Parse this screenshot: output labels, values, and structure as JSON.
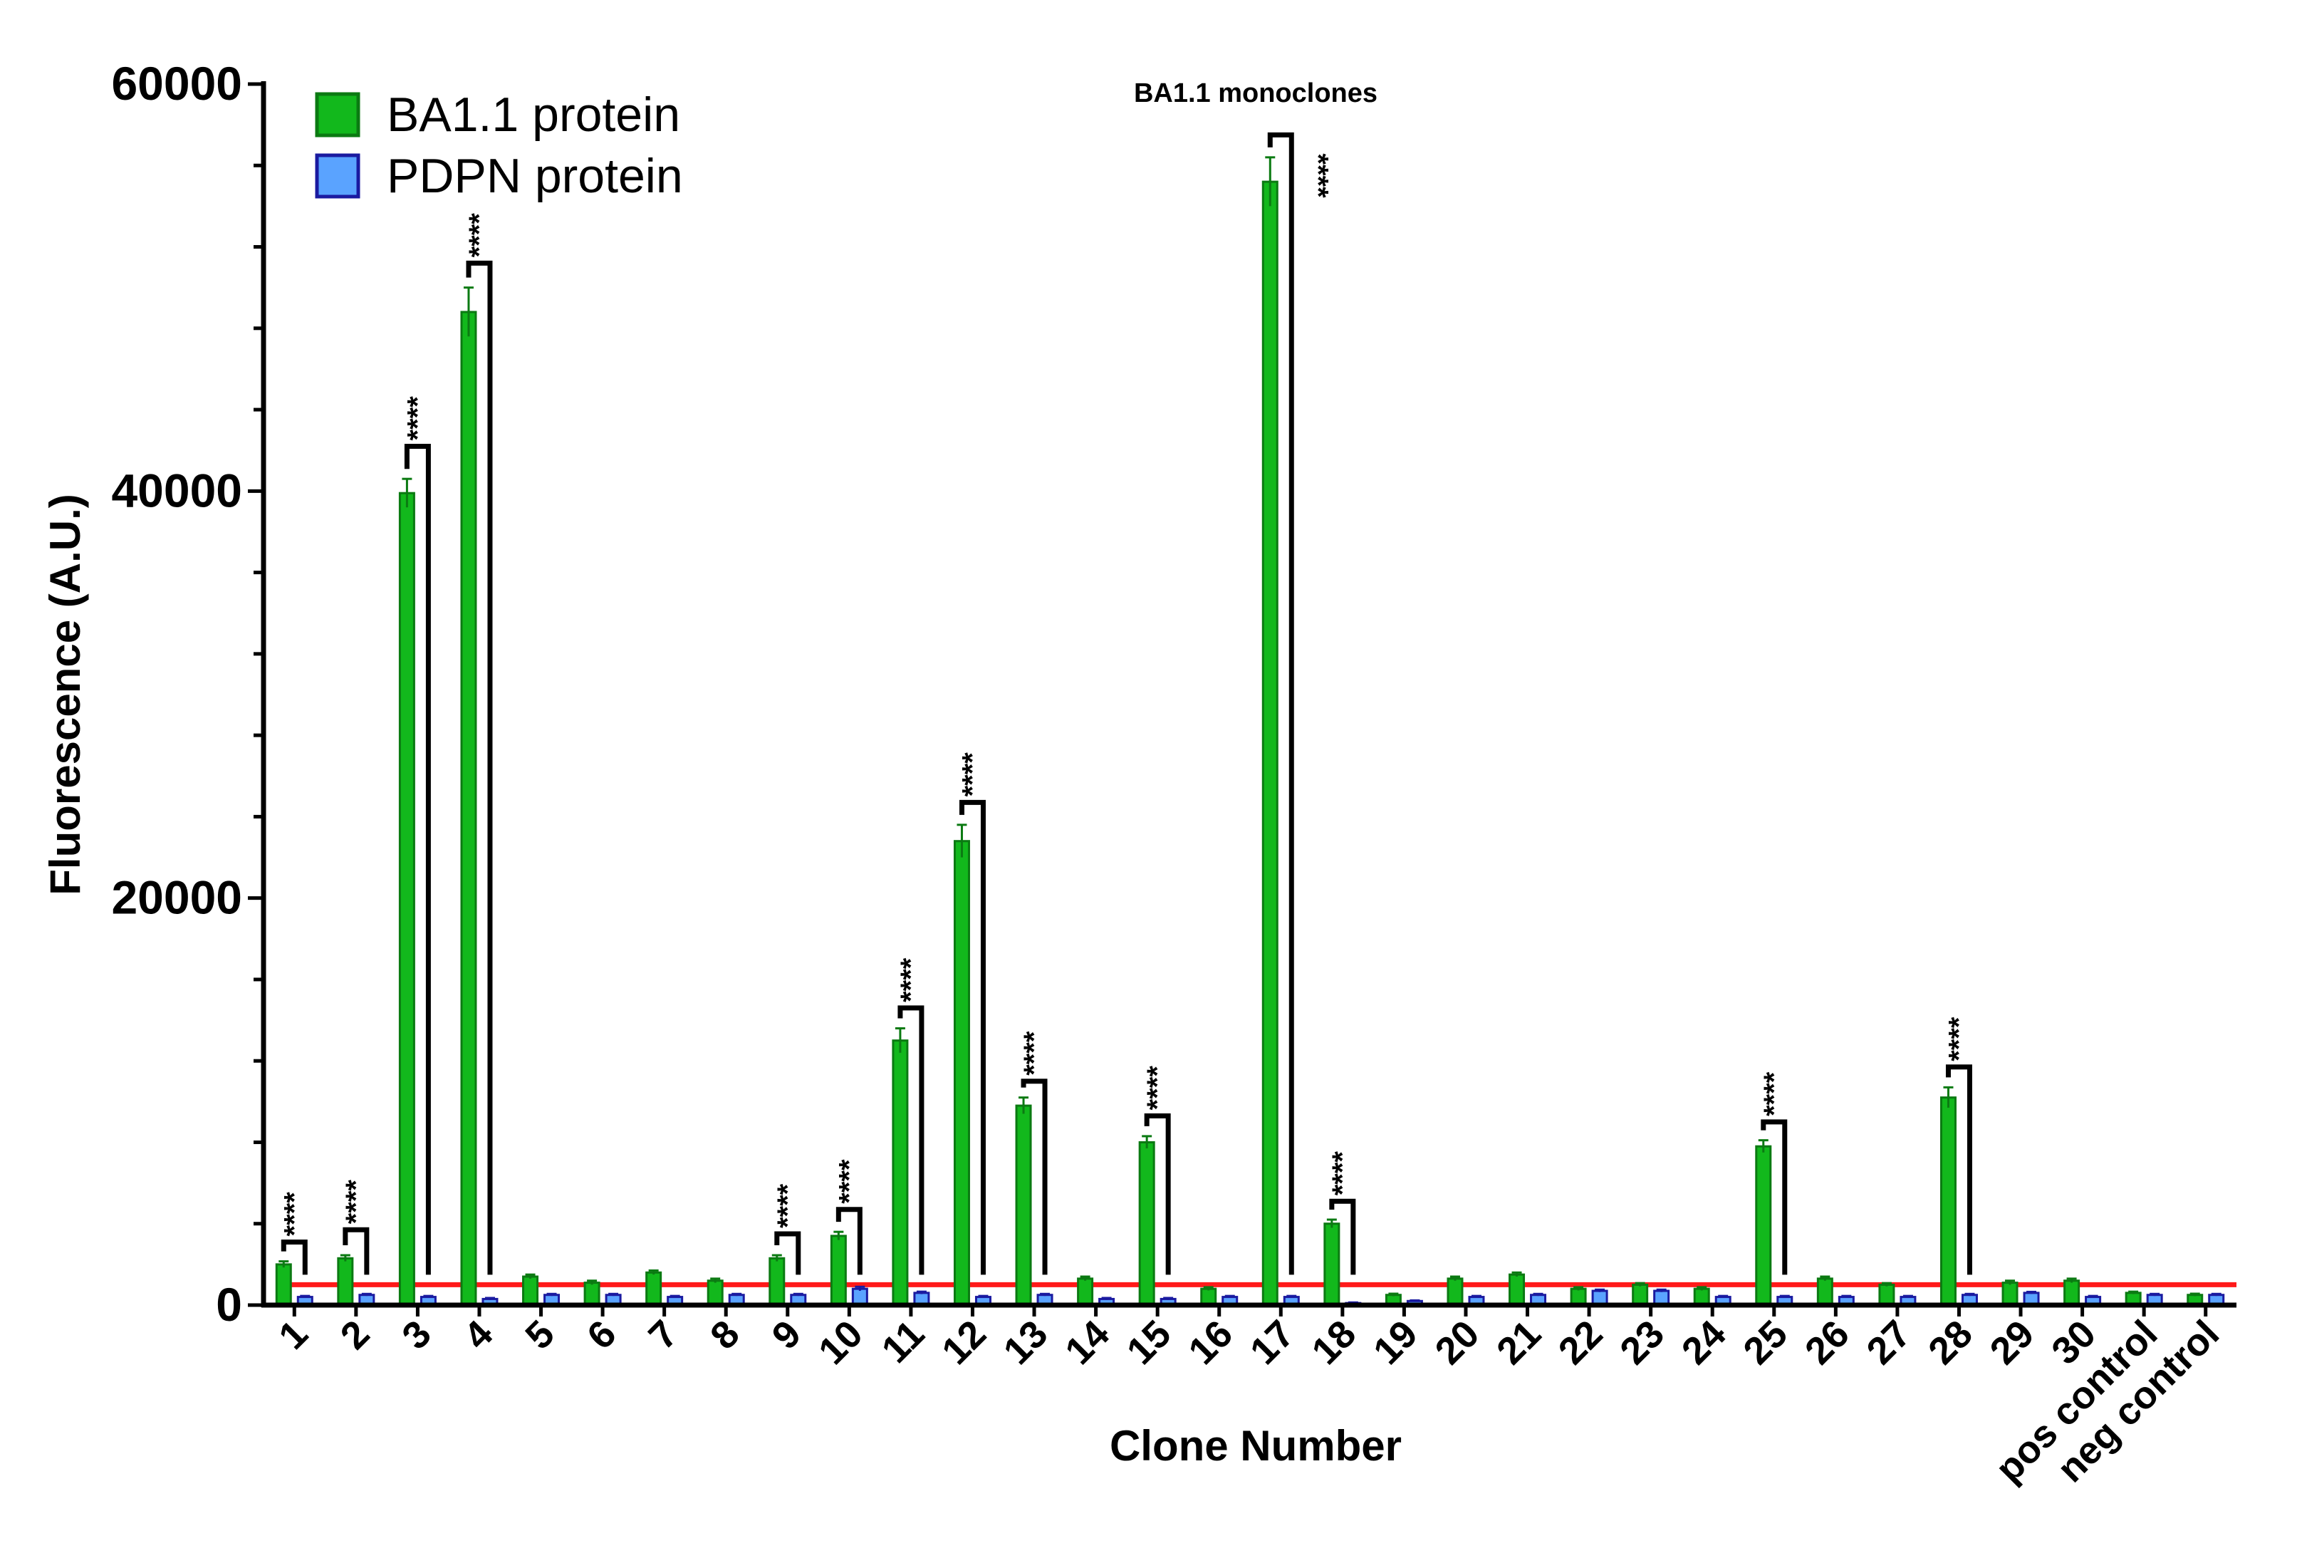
{
  "chart_data": {
    "type": "bar",
    "title": "BA1.1 monoclones",
    "xlabel": "Clone Number",
    "ylabel": "Fluorescence (A.U.)",
    "ylim": [
      0,
      60000
    ],
    "yticks": [
      0,
      20000,
      40000,
      60000
    ],
    "categories": [
      "1",
      "2",
      "3",
      "4",
      "5",
      "6",
      "7",
      "8",
      "9",
      "10",
      "11",
      "12",
      "13",
      "14",
      "15",
      "16",
      "17",
      "18",
      "19",
      "20",
      "21",
      "22",
      "23",
      "24",
      "25",
      "26",
      "27",
      "28",
      "29",
      "30",
      "pos control",
      "neg control"
    ],
    "series": [
      {
        "name": "BA1.1 protein",
        "color": "#12b81c",
        "values": [
          2000,
          2300,
          39900,
          48800,
          1400,
          1100,
          1600,
          1200,
          2300,
          3400,
          13000,
          22800,
          9800,
          1300,
          8000,
          800,
          55200,
          4000,
          500,
          1300,
          1500,
          800,
          1000,
          800,
          7800,
          1300,
          1000,
          10200,
          1100,
          1200,
          600,
          500
        ],
        "errors": [
          150,
          150,
          700,
          1200,
          100,
          100,
          100,
          100,
          150,
          200,
          600,
          800,
          400,
          100,
          300,
          80,
          1200,
          200,
          60,
          100,
          100,
          80,
          80,
          80,
          300,
          100,
          80,
          500,
          100,
          100,
          60,
          60
        ]
      },
      {
        "name": "PDPN protein",
        "color": "#5aa3ff",
        "values": [
          400,
          500,
          400,
          300,
          500,
          500,
          400,
          500,
          500,
          800,
          600,
          400,
          500,
          300,
          300,
          400,
          400,
          100,
          200,
          400,
          500,
          700,
          700,
          400,
          400,
          400,
          400,
          500,
          600,
          400,
          500,
          500
        ],
        "errors": [
          50,
          50,
          50,
          50,
          50,
          50,
          50,
          50,
          50,
          100,
          60,
          50,
          50,
          50,
          50,
          50,
          50,
          30,
          30,
          50,
          50,
          60,
          60,
          50,
          50,
          50,
          50,
          50,
          50,
          50,
          50,
          50
        ]
      }
    ],
    "threshold": {
      "value": 1000,
      "color": "#ff1a1a"
    },
    "significance": [
      {
        "category": "1",
        "label": "****",
        "top": 3100
      },
      {
        "category": "2",
        "label": "****",
        "top": 3700
      },
      {
        "category": "3",
        "label": "****",
        "top": 42200
      },
      {
        "category": "4",
        "label": "****",
        "top": 51200
      },
      {
        "category": "9",
        "label": "****",
        "top": 3500
      },
      {
        "category": "10",
        "label": "****",
        "top": 4700
      },
      {
        "category": "11",
        "label": "****",
        "top": 14600
      },
      {
        "category": "12",
        "label": "****",
        "top": 24700
      },
      {
        "category": "13",
        "label": "****",
        "top": 11000
      },
      {
        "category": "15",
        "label": "****",
        "top": 9300
      },
      {
        "category": "17",
        "label": "****",
        "top": 57500
      },
      {
        "category": "18",
        "label": "****",
        "top": 5100
      },
      {
        "category": "25",
        "label": "****",
        "top": 9000
      },
      {
        "category": "28",
        "label": "****",
        "top": 11700
      }
    ],
    "legend": {
      "position": "top-left"
    }
  }
}
